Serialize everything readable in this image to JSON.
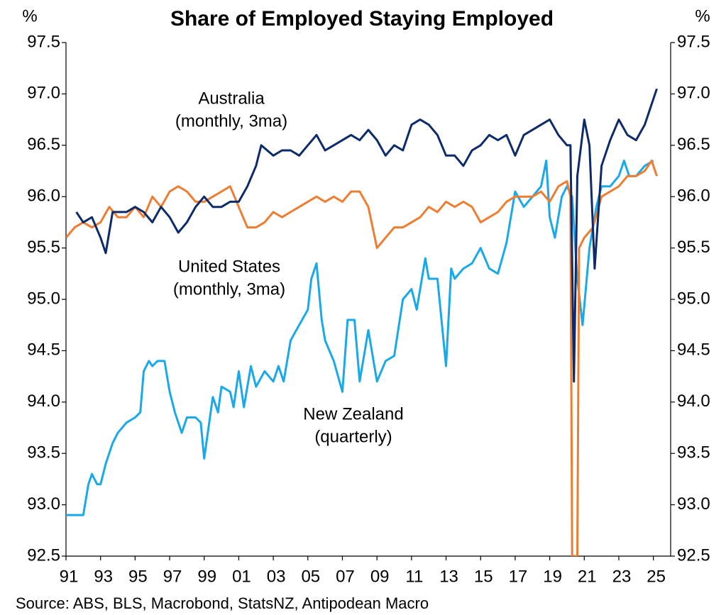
{
  "chart_data": {
    "type": "line",
    "title": "Share of Employed Staying Employed",
    "ylabel": "%",
    "y2label": "%",
    "source": "Source: ABS, BLS, Macrobond, StatsNZ, Antipodean Macro",
    "xlim": [
      1991,
      2026
    ],
    "xticks": [
      {
        "value": 1991,
        "label": "91"
      },
      {
        "value": 1993,
        "label": "93"
      },
      {
        "value": 1995,
        "label": "95"
      },
      {
        "value": 1997,
        "label": "97"
      },
      {
        "value": 1999,
        "label": "99"
      },
      {
        "value": 2001,
        "label": "01"
      },
      {
        "value": 2003,
        "label": "03"
      },
      {
        "value": 2005,
        "label": "05"
      },
      {
        "value": 2007,
        "label": "07"
      },
      {
        "value": 2009,
        "label": "09"
      },
      {
        "value": 2011,
        "label": "11"
      },
      {
        "value": 2013,
        "label": "13"
      },
      {
        "value": 2015,
        "label": "15"
      },
      {
        "value": 2017,
        "label": "17"
      },
      {
        "value": 2019,
        "label": "19"
      },
      {
        "value": 2021,
        "label": "21"
      },
      {
        "value": 2023,
        "label": "23"
      },
      {
        "value": 2025,
        "label": "25"
      }
    ],
    "ylim": [
      92.5,
      97.5
    ],
    "yticks": [
      92.5,
      {
        "value": 93,
        "label": "93.0"
      },
      93.5,
      {
        "value": 94,
        "label": "94.0"
      },
      94.5,
      {
        "value": 95,
        "label": "95.0"
      },
      95.5,
      {
        "value": 96,
        "label": "96.0"
      },
      96.5,
      {
        "value": 97,
        "label": "97.0"
      },
      97.5
    ],
    "y2lim": [
      92.5,
      97.5
    ],
    "y2ticks": [
      92.5,
      {
        "value": 93,
        "label": "93.0"
      },
      93.5,
      {
        "value": 94,
        "label": "94.0"
      },
      94.5,
      {
        "value": 95,
        "label": "95.0"
      },
      95.5,
      {
        "value": 96,
        "label": "96.0"
      },
      96.5,
      {
        "value": 97,
        "label": "97.0"
      },
      97.5
    ],
    "series": [
      {
        "name": "Australia",
        "frequency": "(monthly, 3ma)",
        "color": "#0d2a6b",
        "x": [
          1991.6,
          1992,
          1992.5,
          1993,
          1993.3,
          1993.7,
          1994.5,
          1995,
          1995.5,
          1996,
          1996.5,
          1997,
          1997.5,
          1998,
          1998.5,
          1999,
          1999.5,
          2000,
          2000.5,
          2001,
          2001.5,
          2002,
          2002.3,
          2003,
          2003.5,
          2004,
          2004.5,
          2005,
          2005.5,
          2006,
          2006.5,
          2007,
          2007.5,
          2008,
          2008.5,
          2009,
          2009.5,
          2010,
          2010.5,
          2011,
          2011.5,
          2012,
          2012.5,
          2013,
          2013.5,
          2014,
          2014.5,
          2015,
          2015.5,
          2016,
          2016.5,
          2017,
          2017.5,
          2018,
          2018.5,
          2019,
          2019.5,
          2020,
          2020.2,
          2020.4,
          2020.6,
          2021,
          2021.3,
          2021.6,
          2022,
          2022.5,
          2023,
          2023.5,
          2024,
          2024.5,
          2024.9,
          2025.2
        ],
        "values": [
          95.85,
          95.75,
          95.8,
          95.6,
          95.45,
          95.85,
          95.85,
          95.9,
          95.85,
          95.75,
          95.9,
          95.8,
          95.65,
          95.75,
          95.9,
          96.0,
          95.9,
          95.9,
          95.95,
          95.95,
          96.1,
          96.3,
          96.5,
          96.4,
          96.45,
          96.45,
          96.4,
          96.5,
          96.6,
          96.45,
          96.5,
          96.55,
          96.6,
          96.55,
          96.65,
          96.55,
          96.4,
          96.5,
          96.45,
          96.7,
          96.75,
          96.7,
          96.6,
          96.4,
          96.4,
          96.3,
          96.45,
          96.5,
          96.6,
          96.55,
          96.6,
          96.4,
          96.6,
          96.65,
          96.7,
          96.75,
          96.6,
          96.5,
          96.5,
          94.2,
          96.2,
          96.75,
          96.5,
          95.3,
          96.3,
          96.55,
          96.75,
          96.6,
          96.55,
          96.7,
          96.9,
          97.05
        ]
      },
      {
        "name": "United States",
        "frequency": "(monthly, 3ma)",
        "color": "#ed7d31",
        "x": [
          1991,
          1991.5,
          1992,
          1992.5,
          1993,
          1993.5,
          1994,
          1994.5,
          1995,
          1995.5,
          1996,
          1996.5,
          1997,
          1997.5,
          1998,
          1998.5,
          1999,
          1999.5,
          2000,
          2000.5,
          2001,
          2001.5,
          2002,
          2002.5,
          2003,
          2003.5,
          2004,
          2004.5,
          2005,
          2005.5,
          2006,
          2006.5,
          2007,
          2007.5,
          2008,
          2008.5,
          2009,
          2009.5,
          2010,
          2010.5,
          2011,
          2011.5,
          2012,
          2012.5,
          2013,
          2013.5,
          2014,
          2014.5,
          2015,
          2015.5,
          2016,
          2016.5,
          2017,
          2017.5,
          2018,
          2018.5,
          2019,
          2019.5,
          2020,
          2020.2,
          2020.3,
          2020.6,
          2020.7,
          2021,
          2021.5,
          2022,
          2022.5,
          2023,
          2023.5,
          2024,
          2024.5,
          2024.9,
          2025.2
        ],
        "values": [
          95.6,
          95.7,
          95.75,
          95.7,
          95.75,
          95.9,
          95.8,
          95.8,
          95.9,
          95.8,
          96.0,
          95.9,
          96.05,
          96.1,
          96.05,
          95.95,
          95.95,
          96.0,
          96.05,
          96.1,
          95.9,
          95.7,
          95.7,
          95.75,
          95.85,
          95.8,
          95.85,
          95.9,
          95.95,
          96.0,
          95.95,
          96.0,
          95.95,
          96.05,
          96.05,
          95.9,
          95.5,
          95.6,
          95.7,
          95.7,
          95.75,
          95.8,
          95.9,
          95.85,
          95.95,
          95.9,
          95.95,
          95.9,
          95.75,
          95.8,
          95.85,
          95.95,
          96.0,
          96.0,
          96.0,
          96.05,
          95.95,
          96.1,
          96.15,
          96.0,
          92.5,
          92.5,
          95.5,
          95.6,
          95.7,
          96.0,
          96.05,
          96.1,
          96.2,
          96.2,
          96.25,
          96.35,
          96.2
        ]
      },
      {
        "name": "New Zealand",
        "frequency": "(quarterly)",
        "color": "#1aa9e8",
        "x": [
          1991,
          1991.5,
          1992,
          1992.3,
          1992.5,
          1992.8,
          1993,
          1993.3,
          1993.7,
          1994,
          1994.5,
          1995,
          1995.3,
          1995.5,
          1995.8,
          1996,
          1996.3,
          1996.7,
          1997,
          1997.3,
          1997.7,
          1998,
          1998.5,
          1998.8,
          1999,
          1999.5,
          1999.8,
          2000,
          2000.5,
          2000.7,
          2001,
          2001.3,
          2001.7,
          2002,
          2002.5,
          2003,
          2003.3,
          2003.6,
          2004,
          2004.5,
          2005,
          2005.2,
          2005.5,
          2005.8,
          2006,
          2006.5,
          2007,
          2007.3,
          2007.7,
          2008,
          2008.5,
          2008.8,
          2009,
          2009.5,
          2010,
          2010.5,
          2011,
          2011.3,
          2011.8,
          2012,
          2012.5,
          2013,
          2013.3,
          2013.5,
          2014,
          2014.5,
          2015,
          2015.5,
          2016,
          2016.5,
          2017,
          2017.5,
          2018,
          2018.5,
          2018.8,
          2019,
          2019.3,
          2019.7,
          2020,
          2020.3,
          2020.6,
          2020.9,
          2021.3,
          2021.7,
          2022,
          2022.5,
          2023,
          2023.3,
          2023.6,
          2024,
          2024.5,
          2025
        ],
        "values": [
          92.9,
          92.9,
          92.9,
          93.2,
          93.3,
          93.2,
          93.2,
          93.4,
          93.6,
          93.7,
          93.8,
          93.85,
          93.9,
          94.3,
          94.4,
          94.35,
          94.4,
          94.4,
          94.1,
          93.9,
          93.7,
          93.85,
          93.85,
          93.8,
          93.45,
          94.05,
          93.9,
          94.15,
          94.1,
          93.95,
          94.3,
          93.95,
          94.35,
          94.15,
          94.3,
          94.2,
          94.35,
          94.2,
          94.6,
          94.75,
          94.9,
          95.2,
          95.35,
          94.8,
          94.6,
          94.4,
          94.1,
          94.8,
          94.8,
          94.2,
          94.7,
          94.4,
          94.2,
          94.4,
          94.45,
          95.0,
          95.1,
          94.9,
          95.4,
          95.2,
          95.2,
          94.35,
          95.3,
          95.2,
          95.3,
          95.35,
          95.5,
          95.3,
          95.25,
          95.55,
          96.05,
          95.9,
          96.0,
          96.1,
          96.35,
          95.8,
          95.6,
          96.0,
          96.1,
          96.0,
          95.2,
          94.75,
          95.5,
          95.9,
          96.1,
          96.1,
          96.2,
          96.35,
          96.2,
          96.2,
          96.3,
          96.35
        ]
      }
    ]
  }
}
